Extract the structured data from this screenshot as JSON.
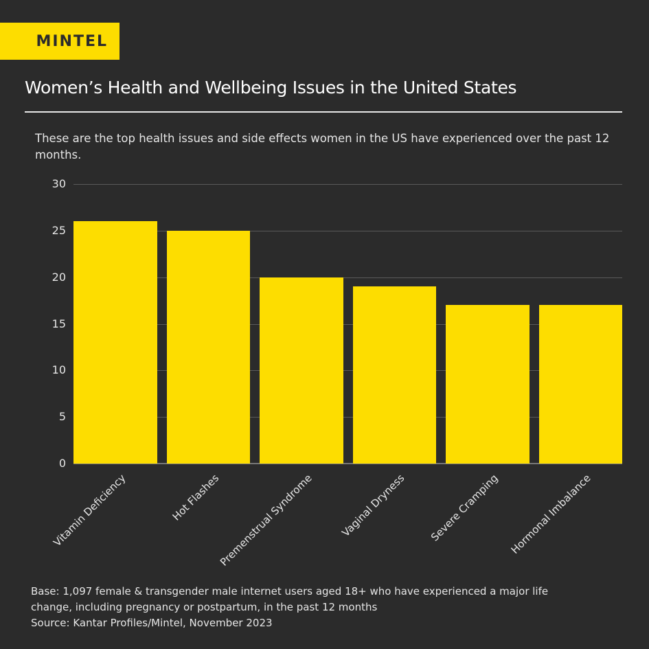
{
  "brand": {
    "logo_text": "MINTEL",
    "accent_color": "#fddd00",
    "background_color": "#2b2b2b"
  },
  "header": {
    "title": "Women’s Health and Wellbeing Issues in the United States",
    "subtitle": "These are the top health issues and side effects women in the US have experienced over the past 12 months."
  },
  "footer": {
    "base": "Base:  1,097 female & transgender male internet users aged 18+ who have experienced a major life change, including pregnancy or postpartum, in the past 12 months",
    "source": "Source: Kantar Profiles/Mintel, November 2023"
  },
  "chart_data": {
    "type": "bar",
    "title": "Women’s Health and Wellbeing Issues in the United States",
    "subtitle": "These are the top health issues and side effects women in the US have experienced over the past 12 months.",
    "xlabel": "",
    "ylabel": "",
    "categories": [
      "Vitamin Deficiency",
      "Hot Flashes",
      "Premenstrual Syndrome",
      "Vaginal Dryness",
      "Severe Cramping",
      "Hormonal Imbalance"
    ],
    "values": [
      26,
      25,
      20,
      19,
      17,
      17
    ],
    "ylim": [
      0,
      30
    ],
    "yticks": [
      "0",
      "5",
      "10",
      "15",
      "20",
      "25",
      "30"
    ],
    "grid": true,
    "legend": null,
    "bar_color": "#fddd00",
    "x_label_rotation": -45
  }
}
